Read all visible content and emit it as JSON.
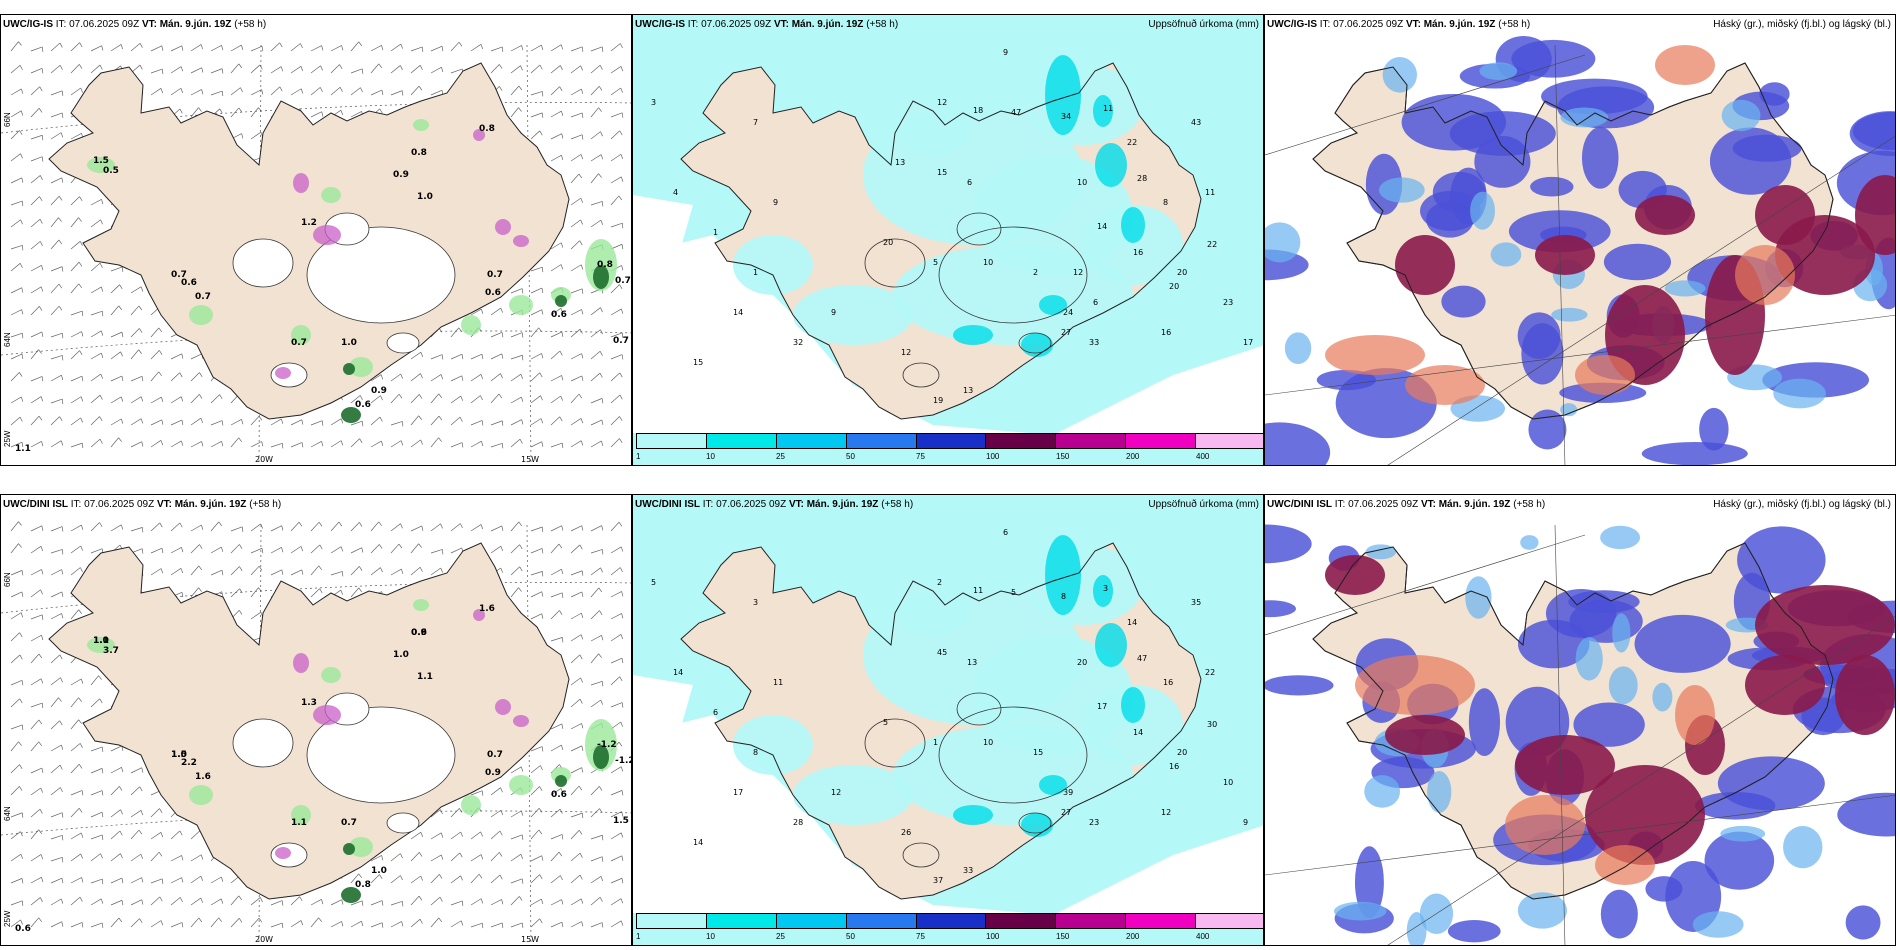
{
  "rows": [
    {
      "panels": [
        {
          "title_bold": "UWC/IG-IS",
          "title_rest": " IT: 07.06.2025 09Z ",
          "vt_bold": "VT: Mán. 9.jún. 19Z",
          "vt_rest": " (+58 h)",
          "right_title": ""
        },
        {
          "title_bold": "UWC/IG-IS",
          "title_rest": " IT: 07.06.2025 09Z ",
          "vt_bold": "VT: Mán. 9.jún. 19Z",
          "vt_rest": " (+58 h)",
          "right_title": "Uppsöfnuð úrkoma (mm)"
        },
        {
          "title_bold": "UWC/IG-IS",
          "title_rest": " IT: 07.06.2025 09Z ",
          "vt_bold": "VT: Mán. 9.jún. 19Z",
          "vt_rest": " (+58 h)",
          "right_title": "Háský (gr.), miðský (fj.bl.) og lágský (bl.)"
        }
      ]
    },
    {
      "panels": [
        {
          "title_bold": "UWC/DINI ISL",
          "title_rest": " IT: 07.06.2025 09Z ",
          "vt_bold": "VT: Mán. 9.jún. 19Z",
          "vt_rest": " (+58 h)",
          "right_title": ""
        },
        {
          "title_bold": "UWC/DINI ISL",
          "title_rest": " IT: 07.06.2025 09Z ",
          "vt_bold": "VT: Mán. 9.jún. 19Z",
          "vt_rest": " (+58 h)",
          "right_title": "Uppsöfnuð úrkoma (mm)"
        },
        {
          "title_bold": "UWC/DINI ISL",
          "title_rest": " IT: 07.06.2025 09Z ",
          "vt_bold": "VT: Mán. 9.jún. 19Z",
          "vt_rest": " (+58 h)",
          "right_title": "Háský (gr.), miðský (fj.bl.) og lágský (bl.)"
        }
      ]
    }
  ],
  "grid_labels": {
    "lat66": "66N",
    "lat64": "64N",
    "lon25": "25W",
    "lon20": "20W",
    "lon15": "15W"
  },
  "colorbar": {
    "ticks": [
      "1",
      "10",
      "25",
      "50",
      "75",
      "100",
      "150",
      "200",
      "400"
    ],
    "colors": [
      "#b4f8f8",
      "#00e8e8",
      "#00c8f0",
      "#2878f0",
      "#1830c8",
      "#680048",
      "#b80090",
      "#f000c0",
      "#f8b8f0"
    ]
  },
  "labels": {
    "top_wind": [
      "1.5",
      "0.7",
      "0.8",
      "0.9",
      "1.0",
      "0.7",
      "1.0",
      "0.6",
      "0.8",
      "0.7",
      "0.7",
      "0.6",
      "0.7",
      "0.9",
      "0.6",
      "1.2",
      "0.8",
      "1.1",
      "0.7",
      "0.6",
      "0.5"
    ],
    "top_precip": [
      "9",
      "3",
      "7",
      "12",
      "18",
      "47",
      "34",
      "11",
      "22",
      "28",
      "43",
      "11",
      "8",
      "10",
      "15",
      "6",
      "14",
      "16",
      "20",
      "23",
      "17",
      "16",
      "22",
      "20",
      "33",
      "27",
      "24",
      "19",
      "13",
      "12",
      "9",
      "14",
      "32",
      "15",
      "9",
      "4",
      "1",
      "1",
      "20",
      "5",
      "10",
      "2",
      "12",
      "6",
      "13"
    ],
    "bot_wind": [
      "1.1",
      "1.0",
      "0.9",
      "1.0",
      "1.1",
      "1.6",
      "0.7",
      "0.9",
      "-1.2",
      "-1.2",
      "1.5",
      "0.6",
      "0.7",
      "1.0",
      "0.8",
      "1.3",
      "1.6",
      "0.6",
      "1.1",
      "2.2",
      "3.7",
      "1.0",
      "1.5",
      "0.6"
    ],
    "bot_precip": [
      "6",
      "5",
      "3",
      "2",
      "11",
      "5",
      "8",
      "3",
      "14",
      "47",
      "35",
      "22",
      "16",
      "20",
      "45",
      "13",
      "17",
      "14",
      "16",
      "10",
      "9",
      "12",
      "30",
      "20",
      "23",
      "27",
      "39",
      "37",
      "33",
      "26",
      "12",
      "17",
      "28",
      "14",
      "11",
      "14",
      "8",
      "6",
      "5",
      "1",
      "10",
      "15"
    ]
  }
}
